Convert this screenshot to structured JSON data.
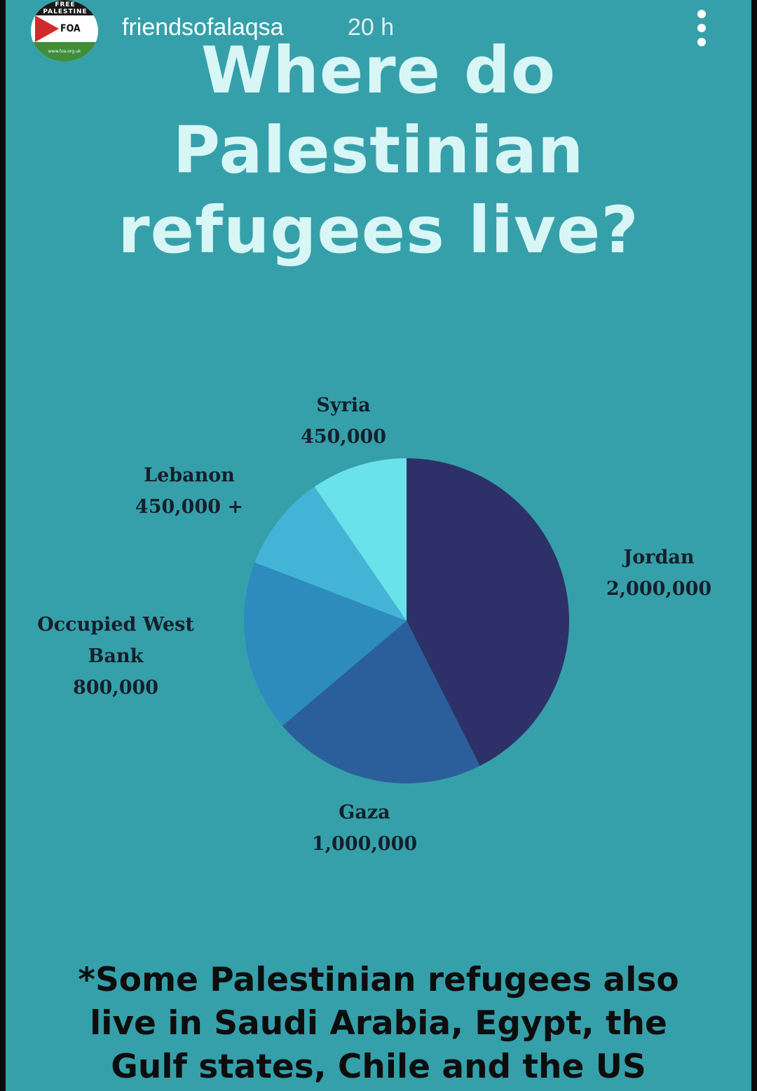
{
  "post": {
    "username": "friendsofalaqsa",
    "time_ago": "20 h",
    "avatar": {
      "top_text": "FREE PALESTINE",
      "logo_text": "FOA",
      "url_text": "www.foa.org.uk"
    },
    "more_icon": "more-vertical-icon"
  },
  "title_lines": [
    "Where do",
    "Palestinian",
    "refugees live?"
  ],
  "chart_data": {
    "type": "pie",
    "title": "Where do Palestinian refugees live?",
    "slices": [
      {
        "name": "Jordan",
        "value": 2000000,
        "label": "2,000,000",
        "color": "#2e3169"
      },
      {
        "name": "Gaza",
        "value": 1000000,
        "label": "1,000,000",
        "color": "#2b5f9b"
      },
      {
        "name": "Occupied West Bank",
        "value": 800000,
        "label": "800,000",
        "color": "#2d8cbd"
      },
      {
        "name": "Lebanon",
        "value": 450000,
        "label": "450,000 +",
        "color": "#44b4d6"
      },
      {
        "name": "Syria",
        "value": 450000,
        "label": "450,000",
        "color": "#6ae2e9"
      }
    ],
    "start": "12 o'clock",
    "direction": "clockwise",
    "legend": "none"
  },
  "footnote_lines": [
    "*Some Palestinian refugees also",
    "live in Saudi Arabia, Egypt, the",
    "Gulf states, Chile and the US"
  ],
  "colors": {
    "background": "#36a0aa",
    "title": "#d8f6f6",
    "label": "#14202c",
    "footnote": "#0d0d0d"
  }
}
